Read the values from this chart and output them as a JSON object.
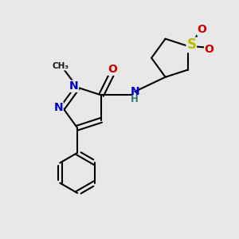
{
  "background_color": "#e8e8e8",
  "bond_color": "#000000",
  "bond_width": 1.5,
  "figsize": [
    3.0,
    3.0
  ],
  "dpi": 100,
  "xlim": [
    0,
    10
  ],
  "ylim": [
    0,
    10
  ]
}
